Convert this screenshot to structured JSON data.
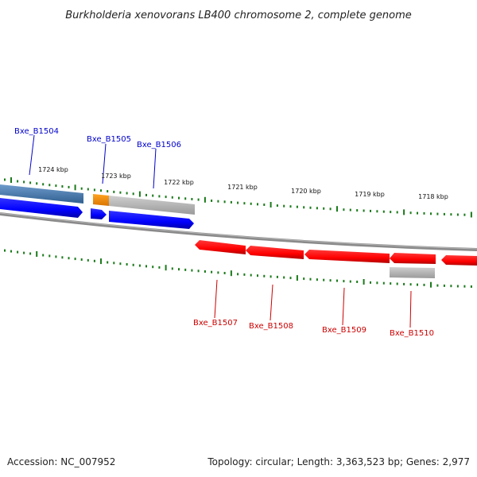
{
  "title": "Burkholderia xenovorans LB400 chromosome 2, complete genome",
  "ticks": [
    "1724 kbp",
    "1723 kbp",
    "1722 kbp",
    "1721 kbp",
    "1720 kbp",
    "1719 kbp",
    "1718 kbp"
  ],
  "genes_forward": [
    "Bxe_B1504",
    "Bxe_B1505",
    "Bxe_B1506"
  ],
  "genes_reverse": [
    "Bxe_B1507",
    "Bxe_B1508",
    "Bxe_B1509",
    "Bxe_B1510"
  ],
  "footer": {
    "accession": "Accession: NC_007952",
    "stats": "Topology: circular; Length: 3,363,523 bp; Genes: 2,977"
  },
  "colors": {
    "forward_cds": "#0000ff",
    "reverse_cds": "#ff0000",
    "forward_gene": "#4a7fb5",
    "rna_gene": "#f08c00",
    "pseudo_gene": "#b4b4b4",
    "backbone": "#808080",
    "tick": "#1a7a1a"
  }
}
